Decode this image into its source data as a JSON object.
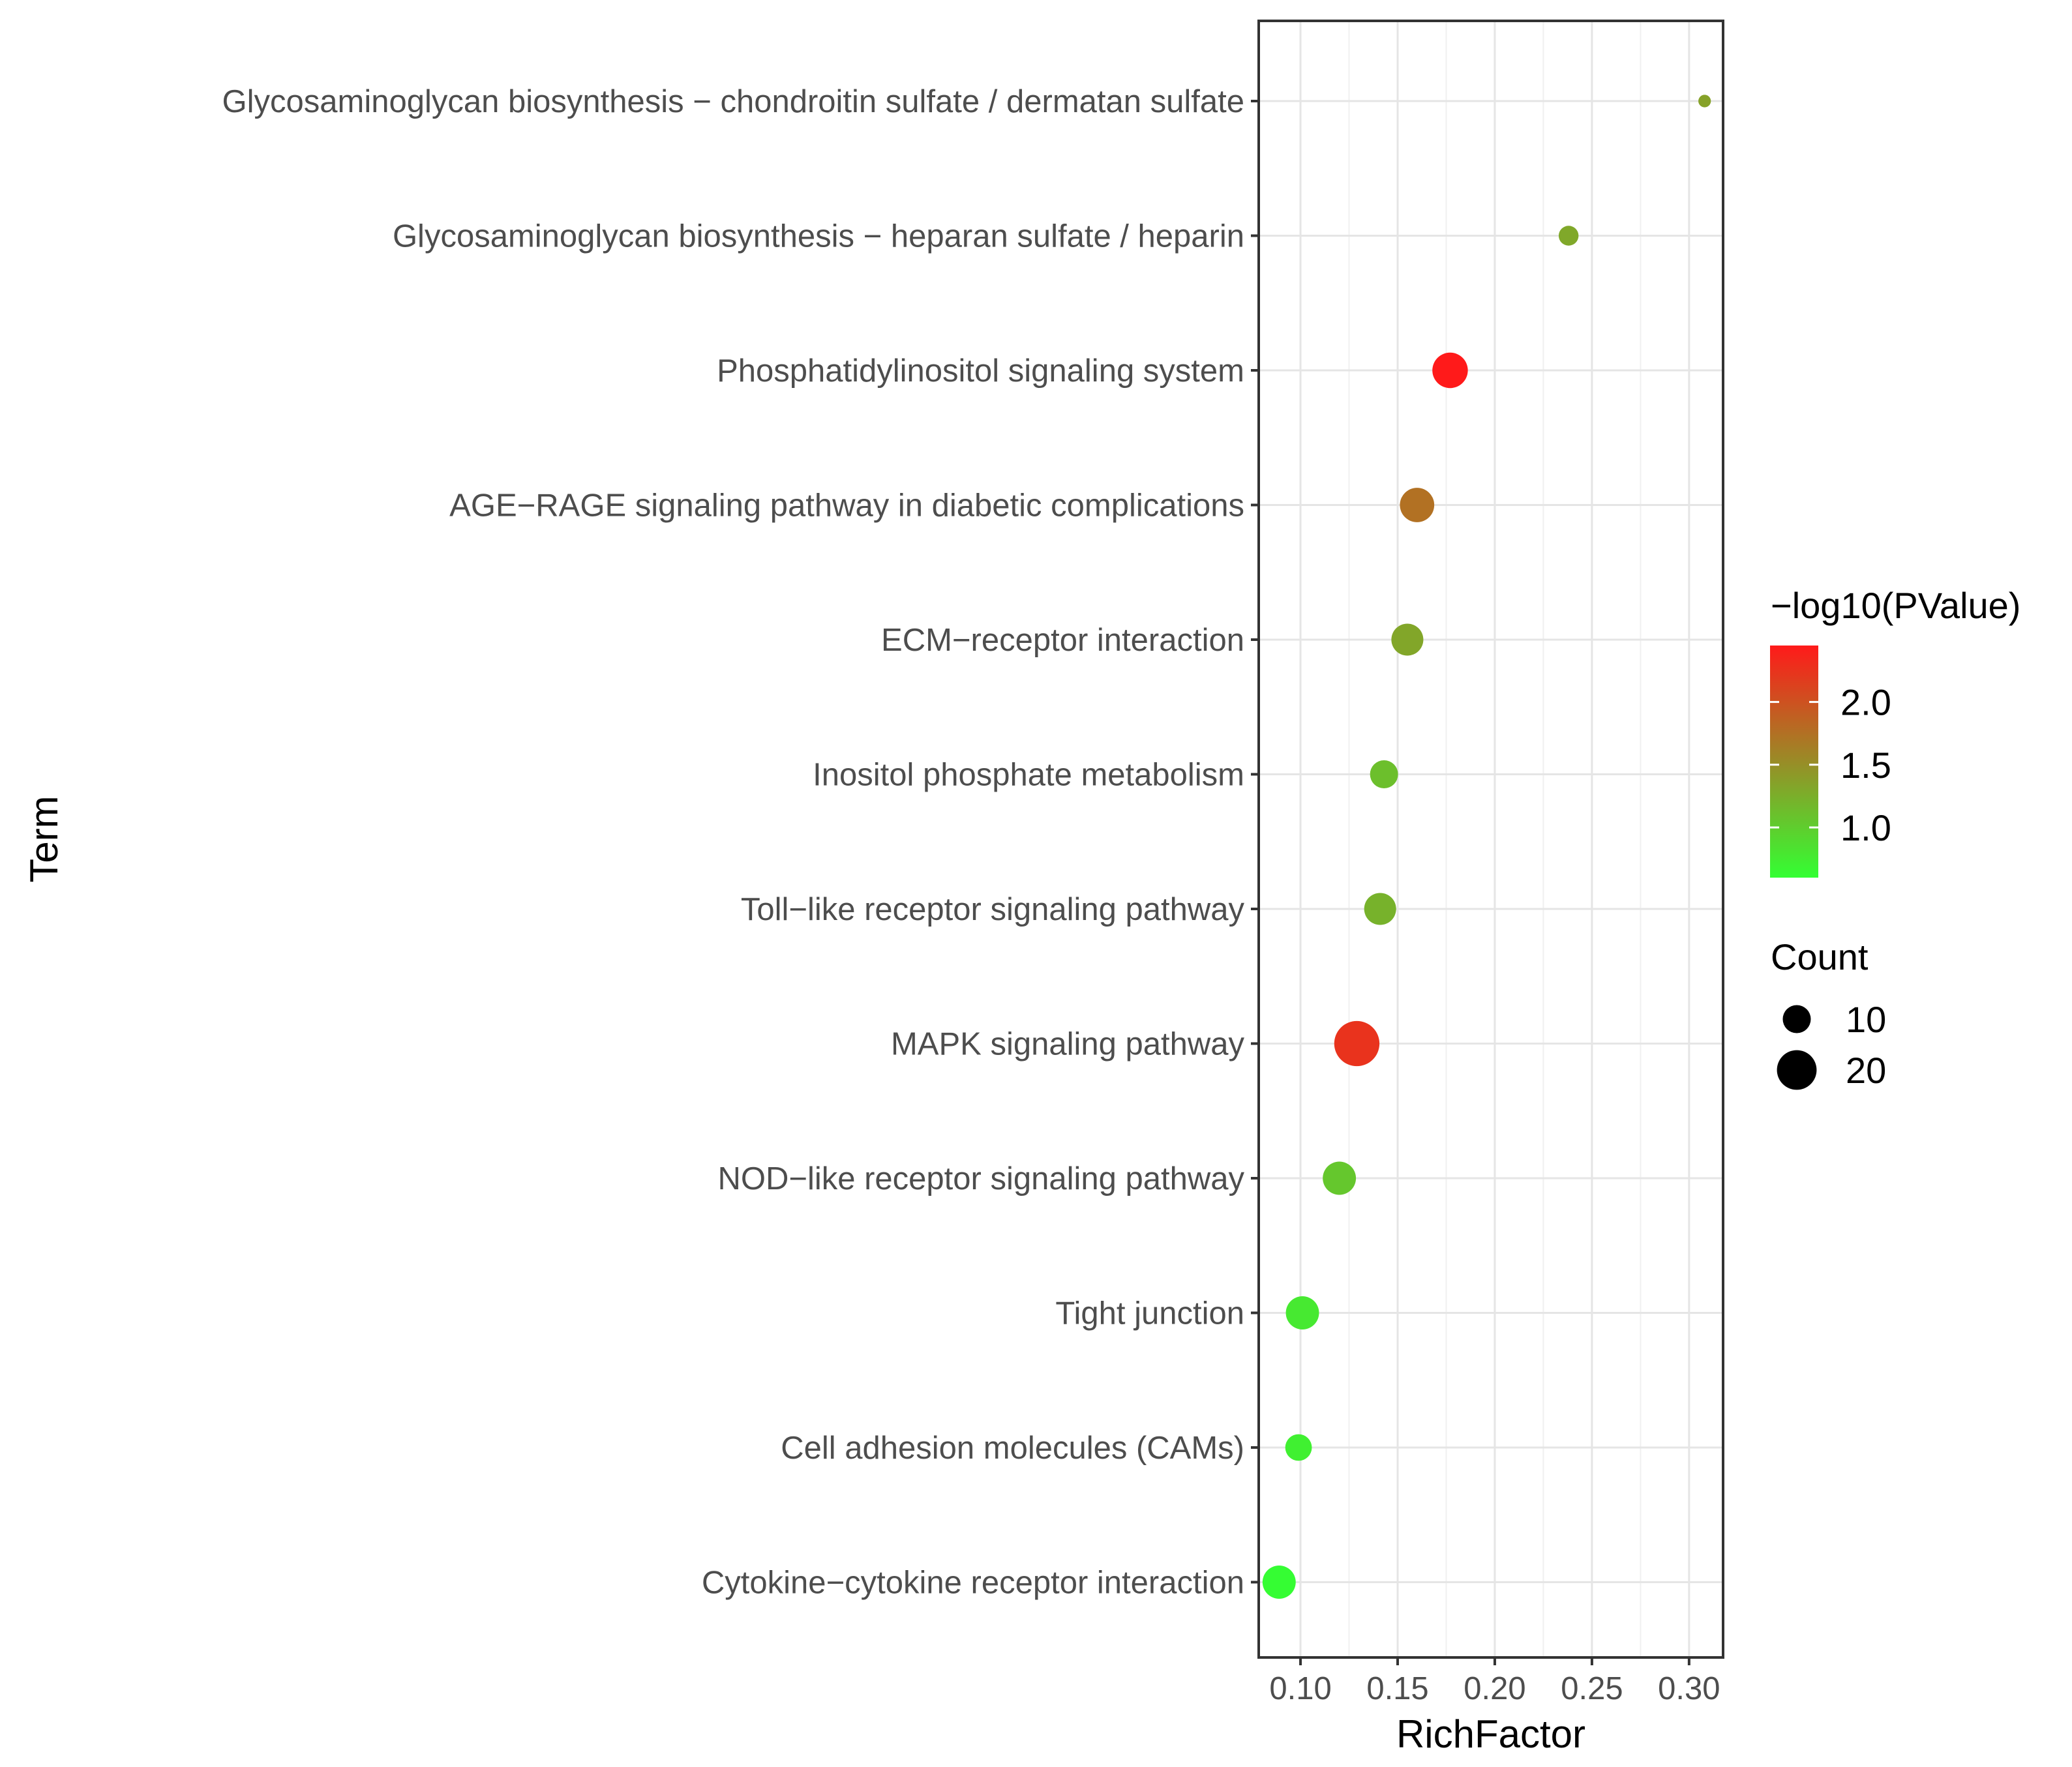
{
  "chart_data": {
    "type": "scatter",
    "subtype": "bubble",
    "title": "",
    "xlabel": "RichFactor",
    "ylabel": "Term",
    "xlim": [
      0.0785,
      0.3175
    ],
    "xticks": [
      0.1,
      0.15,
      0.2,
      0.25,
      0.3
    ],
    "xtick_labels": [
      "0.10",
      "0.15",
      "0.20",
      "0.25",
      "0.30"
    ],
    "grid": true,
    "points": [
      {
        "term": "Glycosaminoglycan biosynthesis − chondroitin sulfate / dermatan sulfate",
        "rich_factor": 0.308,
        "count": 2,
        "neg_log10_p": 1.35
      },
      {
        "term": "Glycosaminoglycan biosynthesis − heparan sulfate / heparin",
        "rich_factor": 0.238,
        "count": 5,
        "neg_log10_p": 1.3
      },
      {
        "term": "Phosphatidylinositol signaling system",
        "rich_factor": 0.177,
        "count": 16,
        "neg_log10_p": 2.45
      },
      {
        "term": "AGE−RAGE signaling pathway in diabetic complications",
        "rich_factor": 0.16,
        "count": 15,
        "neg_log10_p": 1.75
      },
      {
        "term": "ECM−receptor interaction",
        "rich_factor": 0.155,
        "count": 13,
        "neg_log10_p": 1.32
      },
      {
        "term": "Inositol phosphate metabolism",
        "rich_factor": 0.143,
        "count": 10,
        "neg_log10_p": 1.12
      },
      {
        "term": "Toll−like receptor signaling pathway",
        "rich_factor": 0.141,
        "count": 13,
        "neg_log10_p": 1.22
      },
      {
        "term": "MAPK signaling pathway",
        "rich_factor": 0.129,
        "count": 26,
        "neg_log10_p": 2.25
      },
      {
        "term": "NOD−like receptor signaling pathway",
        "rich_factor": 0.12,
        "count": 14,
        "neg_log10_p": 1.05
      },
      {
        "term": "Tight junction",
        "rich_factor": 0.101,
        "count": 14,
        "neg_log10_p": 0.78
      },
      {
        "term": "Cell adhesion molecules (CAMs)",
        "rich_factor": 0.099,
        "count": 9,
        "neg_log10_p": 0.72
      },
      {
        "term": "Cytokine−cytokine receptor interaction",
        "rich_factor": 0.089,
        "count": 14,
        "neg_log10_p": 0.62
      }
    ],
    "color_legend": {
      "title": "−log10(PValue)",
      "min": 0.6,
      "max": 2.45,
      "ticks": [
        2.0,
        1.5,
        1.0
      ],
      "tick_labels": [
        "2.0",
        "1.5",
        "1.0"
      ],
      "low_color": "#33ff33",
      "high_color": "#ff1a1a"
    },
    "size_legend": {
      "title": "Count",
      "values": [
        10,
        20
      ],
      "labels": [
        "10",
        "20"
      ]
    }
  }
}
